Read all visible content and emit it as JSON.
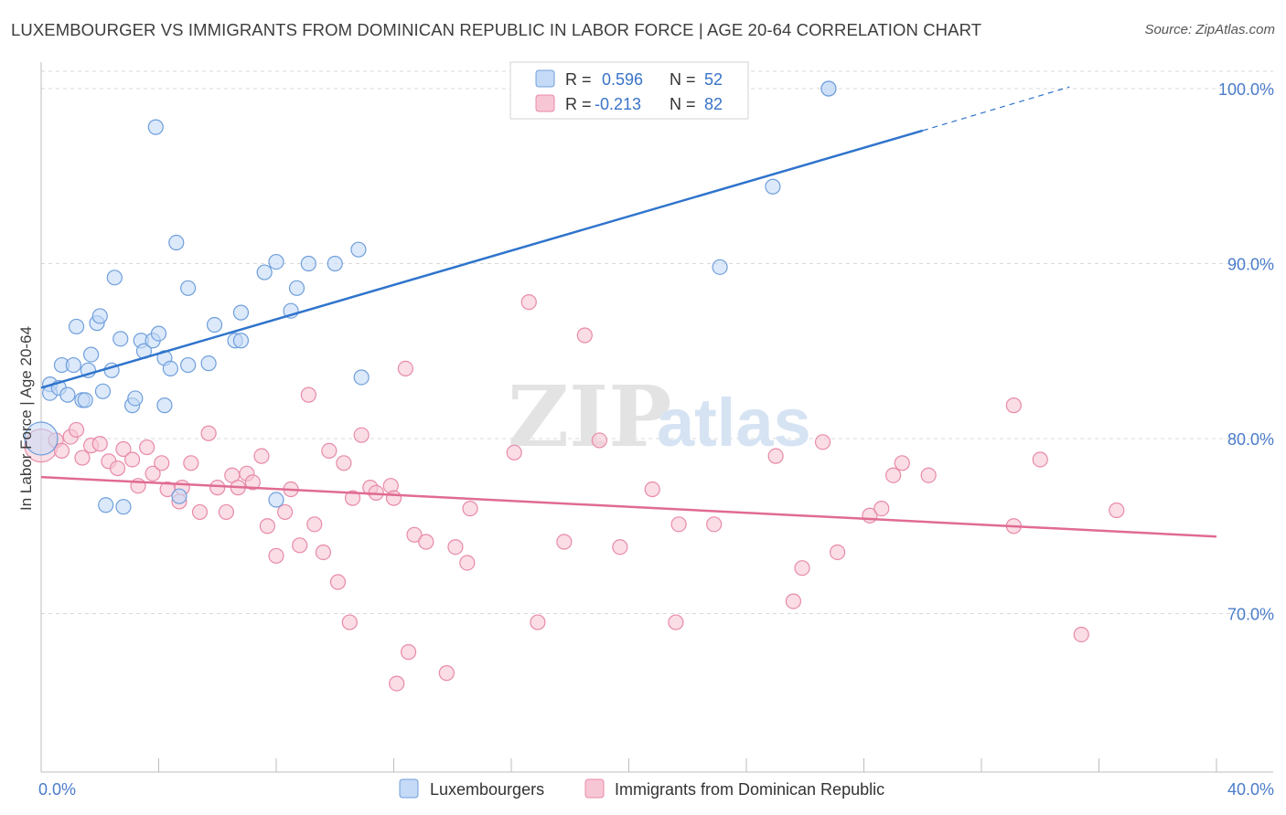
{
  "title": "LUXEMBOURGER VS IMMIGRANTS FROM DOMINICAN REPUBLIC IN LABOR FORCE | AGE 20-64 CORRELATION CHART",
  "source": "Source: ZipAtlas.com",
  "watermark": {
    "zip": "ZIP",
    "atlas": "atlas"
  },
  "colors": {
    "blue_fill": "#c5daf6",
    "blue_stroke": "#6f9fdc",
    "blue_line": "#2f74cc",
    "pink_fill": "#f7c6d4",
    "pink_stroke": "#e88aa8",
    "pink_line": "#e06b93",
    "tick_text": "#4a7cc9",
    "grid": "#d9d9d9"
  },
  "legend": {
    "rows": [
      {
        "r_label": "R =",
        "r_value": "0.596",
        "n_label": "N =",
        "n_value": "52"
      },
      {
        "r_label": "R =",
        "r_value": "-0.213",
        "n_label": "N =",
        "n_value": "82"
      }
    ]
  },
  "chart_data": {
    "type": "scatter",
    "title": "LUXEMBOURGER VS IMMIGRANTS FROM DOMINICAN REPUBLIC IN LABOR FORCE | AGE 20-64 CORRELATION CHART",
    "xlabel": "",
    "ylabel": "In Labor Force | Age 20-64",
    "xlim": [
      0,
      40
    ],
    "ylim": [
      60.5,
      101.5
    ],
    "x_tick_labels": [
      "0.0%",
      "40.0%"
    ],
    "y_ticks": [
      70,
      80,
      90,
      100
    ],
    "y_tick_labels": [
      "70.0%",
      "80.0%",
      "90.0%",
      "100.0%"
    ],
    "grid": true,
    "legend_position": "top-center",
    "series": [
      {
        "name": "Luxembourgers",
        "r": 0.596,
        "n": 52,
        "trend": {
          "x0": 0,
          "y0": 82.9,
          "x1": 30,
          "y1": 97.6,
          "dash_to_x": 35,
          "dash_to_y": 100.1
        },
        "points": [
          [
            0.0,
            80.0
          ],
          [
            0.3,
            83.1
          ],
          [
            0.3,
            82.6
          ],
          [
            0.6,
            82.9
          ],
          [
            0.7,
            84.2
          ],
          [
            0.9,
            82.5
          ],
          [
            1.1,
            84.2
          ],
          [
            1.2,
            86.4
          ],
          [
            1.4,
            82.2
          ],
          [
            1.5,
            82.2
          ],
          [
            1.6,
            83.9
          ],
          [
            1.7,
            84.8
          ],
          [
            1.9,
            86.6
          ],
          [
            2.0,
            87.0
          ],
          [
            2.1,
            82.7
          ],
          [
            2.2,
            76.2
          ],
          [
            2.4,
            83.9
          ],
          [
            2.5,
            89.2
          ],
          [
            2.7,
            85.7
          ],
          [
            2.8,
            76.1
          ],
          [
            3.1,
            81.9
          ],
          [
            3.2,
            82.3
          ],
          [
            3.4,
            85.6
          ],
          [
            3.5,
            85.0
          ],
          [
            3.8,
            85.6
          ],
          [
            3.9,
            97.8
          ],
          [
            4.0,
            86.0
          ],
          [
            4.2,
            84.6
          ],
          [
            4.2,
            81.9
          ],
          [
            4.4,
            84.0
          ],
          [
            4.6,
            91.2
          ],
          [
            4.7,
            76.7
          ],
          [
            5.0,
            88.6
          ],
          [
            5.0,
            84.2
          ],
          [
            5.7,
            84.3
          ],
          [
            5.9,
            86.5
          ],
          [
            6.6,
            85.6
          ],
          [
            6.8,
            87.2
          ],
          [
            6.8,
            85.6
          ],
          [
            7.6,
            89.5
          ],
          [
            8.0,
            90.1
          ],
          [
            8.0,
            76.5
          ],
          [
            8.5,
            87.3
          ],
          [
            8.7,
            88.6
          ],
          [
            9.1,
            90.0
          ],
          [
            10.0,
            90.0
          ],
          [
            10.8,
            90.8
          ],
          [
            10.9,
            83.5
          ],
          [
            23.1,
            89.8
          ],
          [
            24.9,
            94.4
          ],
          [
            26.8,
            100.0
          ],
          [
            26.8,
            100.0
          ]
        ]
      },
      {
        "name": "Immigrants from Dominican Republic",
        "r": -0.213,
        "n": 82,
        "trend": {
          "x0": 0,
          "y0": 77.8,
          "x1": 40,
          "y1": 74.4
        },
        "points": [
          [
            0.0,
            79.6
          ],
          [
            0.5,
            79.9
          ],
          [
            0.7,
            79.3
          ],
          [
            1.0,
            80.1
          ],
          [
            1.2,
            80.5
          ],
          [
            1.4,
            78.9
          ],
          [
            1.7,
            79.6
          ],
          [
            2.0,
            79.7
          ],
          [
            2.3,
            78.7
          ],
          [
            2.6,
            78.3
          ],
          [
            2.8,
            79.4
          ],
          [
            3.1,
            78.8
          ],
          [
            3.3,
            77.3
          ],
          [
            3.6,
            79.5
          ],
          [
            3.8,
            78.0
          ],
          [
            4.1,
            78.6
          ],
          [
            4.3,
            77.1
          ],
          [
            4.7,
            76.4
          ],
          [
            4.8,
            77.2
          ],
          [
            5.1,
            78.6
          ],
          [
            5.4,
            75.8
          ],
          [
            5.7,
            80.3
          ],
          [
            6.0,
            77.2
          ],
          [
            6.3,
            75.8
          ],
          [
            6.5,
            77.9
          ],
          [
            6.7,
            77.2
          ],
          [
            7.0,
            78.0
          ],
          [
            7.2,
            77.5
          ],
          [
            7.5,
            79.0
          ],
          [
            7.7,
            75.0
          ],
          [
            8.0,
            73.3
          ],
          [
            8.3,
            75.8
          ],
          [
            8.5,
            77.1
          ],
          [
            8.8,
            73.9
          ],
          [
            9.1,
            82.5
          ],
          [
            9.3,
            75.1
          ],
          [
            9.6,
            73.5
          ],
          [
            9.8,
            79.3
          ],
          [
            10.1,
            71.8
          ],
          [
            10.3,
            78.6
          ],
          [
            10.5,
            69.5
          ],
          [
            10.9,
            80.2
          ],
          [
            11.2,
            77.2
          ],
          [
            11.4,
            76.9
          ],
          [
            11.9,
            77.3
          ],
          [
            12.4,
            84.0
          ],
          [
            12.0,
            76.6
          ],
          [
            12.5,
            67.8
          ],
          [
            12.7,
            74.5
          ],
          [
            13.1,
            74.1
          ],
          [
            14.1,
            73.8
          ],
          [
            14.5,
            72.9
          ],
          [
            14.6,
            76.0
          ],
          [
            13.8,
            66.6
          ],
          [
            12.1,
            66.0
          ],
          [
            16.1,
            79.2
          ],
          [
            16.6,
            87.8
          ],
          [
            16.9,
            69.5
          ],
          [
            17.8,
            74.1
          ],
          [
            18.5,
            85.9
          ],
          [
            19.0,
            79.9
          ],
          [
            19.7,
            73.8
          ],
          [
            20.8,
            77.1
          ],
          [
            21.6,
            69.5
          ],
          [
            21.7,
            75.1
          ],
          [
            22.9,
            75.1
          ],
          [
            25.0,
            79.0
          ],
          [
            25.6,
            70.7
          ],
          [
            25.9,
            72.6
          ],
          [
            26.6,
            79.8
          ],
          [
            27.1,
            73.5
          ],
          [
            28.2,
            75.6
          ],
          [
            28.6,
            76.0
          ],
          [
            29.0,
            77.9
          ],
          [
            29.3,
            78.6
          ],
          [
            30.2,
            77.9
          ],
          [
            33.1,
            75.0
          ],
          [
            33.1,
            81.9
          ],
          [
            34.0,
            78.8
          ],
          [
            35.4,
            68.8
          ],
          [
            36.6,
            75.9
          ],
          [
            10.6,
            76.6
          ]
        ]
      }
    ]
  }
}
